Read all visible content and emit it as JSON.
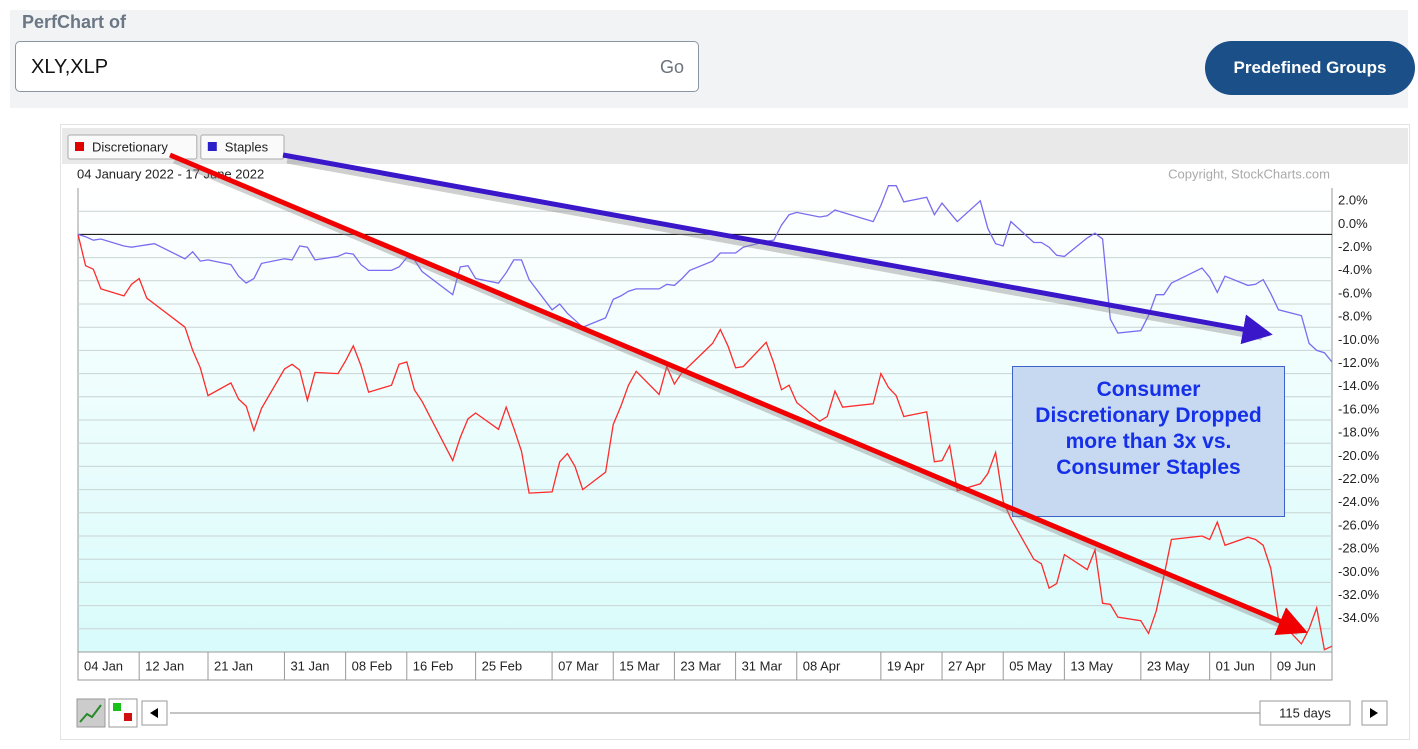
{
  "header": {
    "label": "PerfChart of",
    "input": "XLY,XLP",
    "go": "Go",
    "groups_button": "Predefined Groups"
  },
  "chart_data": {
    "type": "line",
    "date_range": "04 January 2022 - 17 June 2022",
    "copyright": "Copyright, StockCharts.com",
    "annotation": "Consumer Discretionary Dropped more than 3x vs. Consumer Staples",
    "x": [
      "2022-01-04",
      "2022-01-05",
      "2022-01-06",
      "2022-01-07",
      "2022-01-10",
      "2022-01-11",
      "2022-01-12",
      "2022-01-13",
      "2022-01-14",
      "2022-01-18",
      "2022-01-19",
      "2022-01-20",
      "2022-01-21",
      "2022-01-24",
      "2022-01-25",
      "2022-01-26",
      "2022-01-27",
      "2022-01-28",
      "2022-01-31",
      "2022-02-01",
      "2022-02-02",
      "2022-02-03",
      "2022-02-04",
      "2022-02-07",
      "2022-02-08",
      "2022-02-09",
      "2022-02-10",
      "2022-02-11",
      "2022-02-14",
      "2022-02-15",
      "2022-02-16",
      "2022-02-17",
      "2022-02-18",
      "2022-02-22",
      "2022-02-23",
      "2022-02-24",
      "2022-02-25",
      "2022-02-28",
      "2022-03-01",
      "2022-03-02",
      "2022-03-03",
      "2022-03-04",
      "2022-03-07",
      "2022-03-08",
      "2022-03-09",
      "2022-03-10",
      "2022-03-11",
      "2022-03-14",
      "2022-03-15",
      "2022-03-16",
      "2022-03-17",
      "2022-03-18",
      "2022-03-21",
      "2022-03-22",
      "2022-03-23",
      "2022-03-24",
      "2022-03-25",
      "2022-03-28",
      "2022-03-29",
      "2022-03-30",
      "2022-03-31",
      "2022-04-01",
      "2022-04-04",
      "2022-04-05",
      "2022-04-06",
      "2022-04-07",
      "2022-04-08",
      "2022-04-11",
      "2022-04-12",
      "2022-04-13",
      "2022-04-14",
      "2022-04-18",
      "2022-04-19",
      "2022-04-20",
      "2022-04-21",
      "2022-04-22",
      "2022-04-25",
      "2022-04-26",
      "2022-04-27",
      "2022-04-28",
      "2022-04-29",
      "2022-05-02",
      "2022-05-03",
      "2022-05-04",
      "2022-05-05",
      "2022-05-06",
      "2022-05-09",
      "2022-05-10",
      "2022-05-11",
      "2022-05-12",
      "2022-05-13",
      "2022-05-16",
      "2022-05-17",
      "2022-05-18",
      "2022-05-19",
      "2022-05-20",
      "2022-05-23",
      "2022-05-24",
      "2022-05-25",
      "2022-05-26",
      "2022-05-27",
      "2022-05-31",
      "2022-06-01",
      "2022-06-02",
      "2022-06-03",
      "2022-06-06",
      "2022-06-07",
      "2022-06-08",
      "2022-06-09",
      "2022-06-10",
      "2022-06-13",
      "2022-06-14",
      "2022-06-15",
      "2022-06-16",
      "2022-06-17"
    ],
    "series": [
      {
        "name": "Discretionary",
        "color": "#ff2a2a",
        "legend_color": "#e00000",
        "values": [
          0,
          -2.7,
          -3.0,
          -4.7,
          -5.3,
          -4.3,
          -3.8,
          -5.5,
          -6.0,
          -8.0,
          -10.0,
          -11.5,
          -13.9,
          -12.8,
          -14.2,
          -14.8,
          -16.9,
          -15.0,
          -11.6,
          -11.2,
          -11.7,
          -14.3,
          -11.9,
          -12.0,
          -10.9,
          -9.6,
          -11.3,
          -13.6,
          -13.0,
          -11.2,
          -11.0,
          -13.4,
          -14.4,
          -19.5,
          -17.5,
          -15.9,
          -15.4,
          -16.8,
          -14.9,
          -16.7,
          -18.7,
          -22.3,
          -22.2,
          -19.6,
          -18.9,
          -20.0,
          -22.0,
          -20.5,
          -16.4,
          -14.8,
          -13.0,
          -11.8,
          -13.8,
          -11.4,
          -12.9,
          -11.9,
          -11.3,
          -9.4,
          -8.2,
          -9.6,
          -11.5,
          -11.4,
          -9.3,
          -11.1,
          -13.4,
          -13.0,
          -14.5,
          -16.1,
          -15.7,
          -13.5,
          -14.9,
          -14.6,
          -12.0,
          -13.2,
          -13.9,
          -15.7,
          -15.3,
          -19.6,
          -19.5,
          -18.2,
          -22.1,
          -21.5,
          -20.6,
          -18.8,
          -23.0,
          -24.5,
          -28.0,
          -28.4,
          -30.5,
          -30.1,
          -27.6,
          -28.9,
          -27.2,
          -31.8,
          -31.9,
          -33.0,
          -33.3,
          -34.4,
          -32.5,
          -29.5,
          -26.3,
          -26.0,
          -26.3,
          -24.8,
          -26.8,
          -26.1,
          -26.3,
          -26.8,
          -28.8,
          -33.2,
          -35.3,
          -34.0,
          -32.2,
          -35.8,
          -35.5
        ]
      },
      {
        "name": "Staples",
        "color": "#7a6cf0",
        "legend_color": "#2a1fc8",
        "values": [
          0,
          -0.2,
          -0.5,
          -0.4,
          -1.0,
          -1.1,
          -1.0,
          -0.9,
          -0.8,
          -2.1,
          -1.5,
          -2.3,
          -2.2,
          -2.6,
          -3.6,
          -4.2,
          -3.8,
          -2.5,
          -2.1,
          -2.2,
          -1.0,
          -1.1,
          -2.2,
          -1.9,
          -1.6,
          -1.7,
          -2.6,
          -3.1,
          -3.1,
          -2.8,
          -2.0,
          -2.2,
          -3.2,
          -5.2,
          -2.8,
          -2.7,
          -3.8,
          -4.2,
          -3.3,
          -2.2,
          -2.2,
          -3.9,
          -6.5,
          -6.0,
          -6.8,
          -7.4,
          -8.0,
          -7.2,
          -5.6,
          -5.3,
          -4.9,
          -4.7,
          -4.7,
          -4.3,
          -4.4,
          -3.8,
          -3.1,
          -2.3,
          -1.6,
          -1.6,
          -1.6,
          -1.1,
          -0.6,
          -0.5,
          0.8,
          1.7,
          1.9,
          1.5,
          1.6,
          2.1,
          1.9,
          1.1,
          2.5,
          4.2,
          4.2,
          2.8,
          3.2,
          1.7,
          2.7,
          1.9,
          1.1,
          2.9,
          0.5,
          -0.8,
          -1.0,
          1.1,
          -0.7,
          -0.7,
          -1.1,
          -1.8,
          -1.9,
          -0.3,
          0.1,
          -0.4,
          -7.3,
          -8.5,
          -8.3,
          -7.0,
          -5.2,
          -5.2,
          -4.2,
          -2.9,
          -3.7,
          -5.0,
          -3.6,
          -4.4,
          -4.3,
          -3.9,
          -5.1,
          -6.5,
          -7.0,
          -9.4,
          -10.0,
          -10.2,
          -11.0
        ]
      }
    ],
    "xlim": [
      "2022-01-04",
      "2022-06-17"
    ],
    "xticks": [
      {
        "value": "2022-01-04",
        "label": "04 Jan"
      },
      {
        "value": "2022-01-12",
        "label": "12 Jan"
      },
      {
        "value": "2022-01-21",
        "label": "21 Jan"
      },
      {
        "value": "2022-01-31",
        "label": "31 Jan"
      },
      {
        "value": "2022-02-08",
        "label": "08 Feb"
      },
      {
        "value": "2022-02-16",
        "label": "16 Feb"
      },
      {
        "value": "2022-02-25",
        "label": "25 Feb"
      },
      {
        "value": "2022-03-07",
        "label": "07 Mar"
      },
      {
        "value": "2022-03-15",
        "label": "15 Mar"
      },
      {
        "value": "2022-03-23",
        "label": "23 Mar"
      },
      {
        "value": "2022-03-31",
        "label": "31 Mar"
      },
      {
        "value": "2022-04-08",
        "label": "08 Apr"
      },
      {
        "value": "2022-04-19",
        "label": "19 Apr"
      },
      {
        "value": "2022-04-27",
        "label": "27 Apr"
      },
      {
        "value": "2022-05-05",
        "label": "05 May"
      },
      {
        "value": "2022-05-13",
        "label": "13 May"
      },
      {
        "value": "2022-05-23",
        "label": "23 May"
      },
      {
        "value": "2022-06-01",
        "label": "01 Jun"
      },
      {
        "value": "2022-06-09",
        "label": "09 Jun"
      }
    ],
    "ylim": [
      -36,
      4
    ],
    "yticks": [
      {
        "value": 2,
        "label": "2.0%"
      },
      {
        "value": 0,
        "label": "0.0%"
      },
      {
        "value": -2,
        "label": "-2.0%"
      },
      {
        "value": -4,
        "label": "-4.0%"
      },
      {
        "value": -6,
        "label": "-6.0%"
      },
      {
        "value": -8,
        "label": "-8.0%"
      },
      {
        "value": -10,
        "label": "-10.0%"
      },
      {
        "value": -12,
        "label": "-12.0%"
      },
      {
        "value": -14,
        "label": "-14.0%"
      },
      {
        "value": -16,
        "label": "-16.0%"
      },
      {
        "value": -18,
        "label": "-18.0%"
      },
      {
        "value": -20,
        "label": "-20.0%"
      },
      {
        "value": -22,
        "label": "-22.0%"
      },
      {
        "value": -24,
        "label": "-24.0%"
      },
      {
        "value": -26,
        "label": "-26.0%"
      },
      {
        "value": -28,
        "label": "-28.0%"
      },
      {
        "value": -30,
        "label": "-30.0%"
      },
      {
        "value": -32,
        "label": "-32.0%"
      },
      {
        "value": -34,
        "label": "-34.0%"
      }
    ],
    "grid": true
  },
  "controls": {
    "period": "115 days"
  }
}
